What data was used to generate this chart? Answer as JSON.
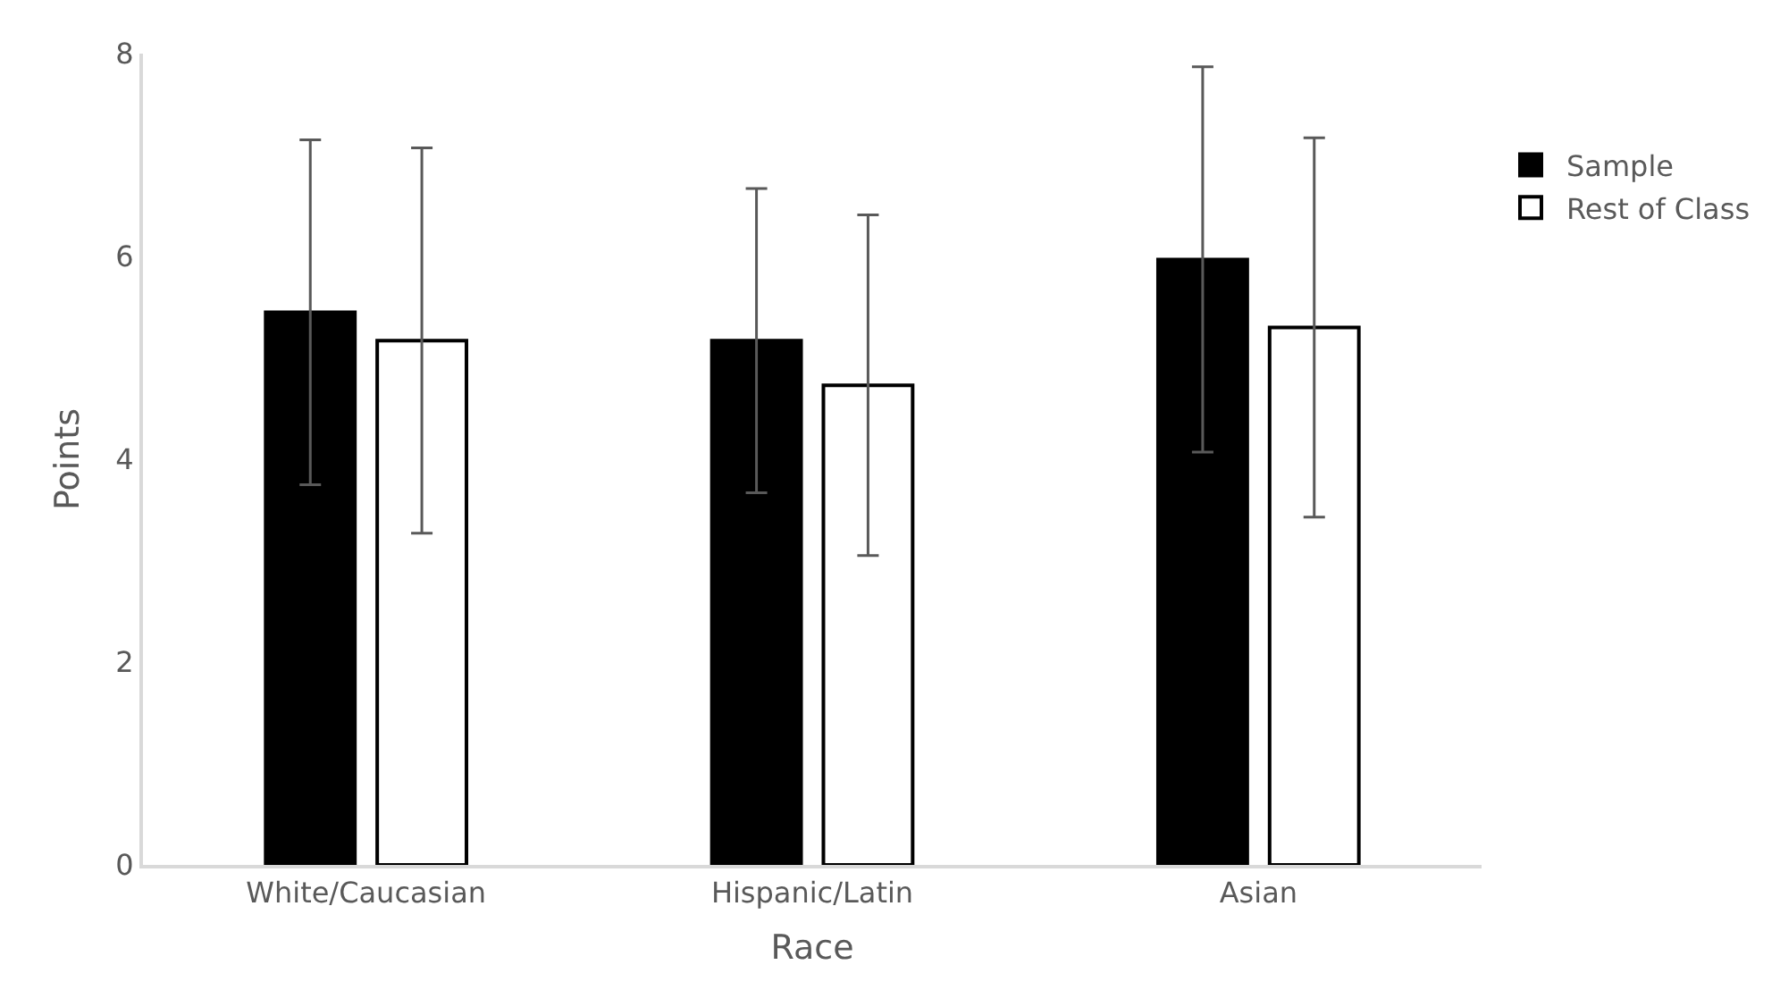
{
  "chart_data": {
    "type": "bar",
    "xlabel": "Race",
    "ylabel": "Points",
    "categories": [
      "White/Caucasian",
      "Hispanic/Latin",
      "Asian"
    ],
    "series": [
      {
        "name": "Sample",
        "color": "#000000",
        "values": [
          5.45,
          5.17,
          5.97
        ],
        "errors": [
          1.7,
          1.5,
          1.9
        ]
      },
      {
        "name": "Rest of Class",
        "color": "#ffffff",
        "values": [
          5.17,
          4.73,
          5.3
        ],
        "errors": [
          1.9,
          1.68,
          1.87
        ]
      }
    ],
    "ylim": [
      0,
      8
    ],
    "yticks": [
      0,
      2,
      4,
      6,
      8
    ],
    "legend": "top right"
  }
}
